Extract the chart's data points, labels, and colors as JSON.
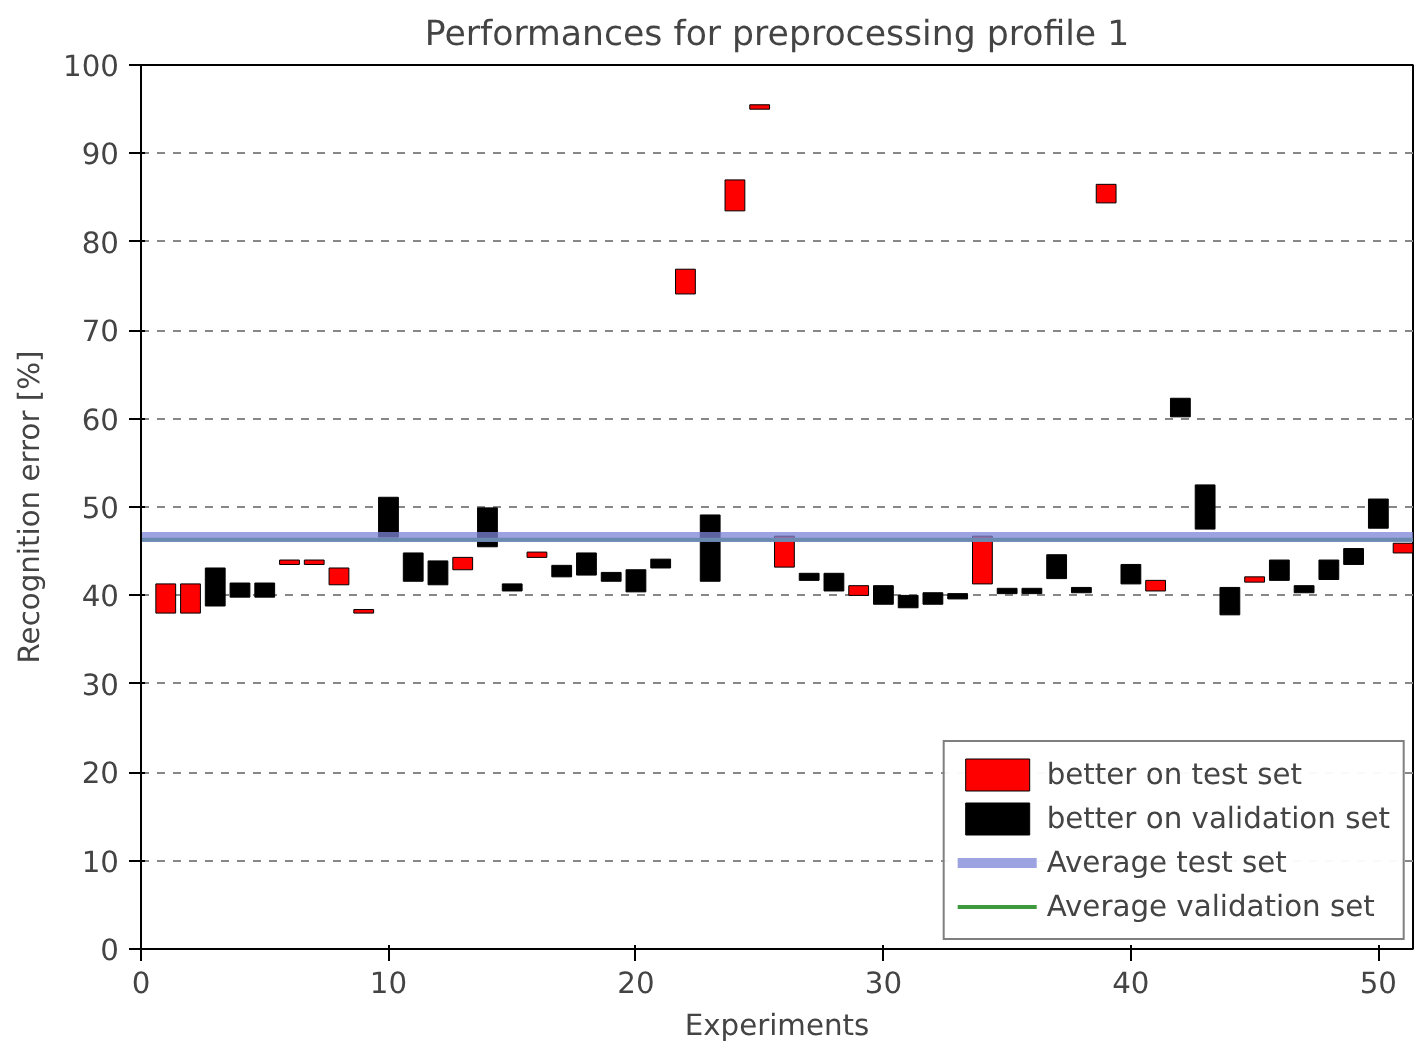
{
  "chart_data": {
    "type": "bar",
    "title": "Performances for preprocessing profile 1",
    "xlabel": "Experiments",
    "ylabel": "Recognition error [%]",
    "series": [
      {
        "name": "better on test set",
        "color": "#ff0000",
        "x": [
          1,
          2,
          6,
          7,
          8,
          9,
          13,
          16,
          22,
          24,
          25,
          26,
          29,
          34,
          39,
          41,
          45,
          51
        ],
        "base": [
          38.0,
          38.0,
          43.5,
          43.5,
          41.2,
          38.0,
          42.9,
          44.3,
          74.1,
          83.5,
          95.0,
          43.2,
          40.0,
          41.3,
          84.4,
          40.5,
          41.5,
          44.8
        ],
        "values": [
          3.3,
          3.3,
          0.5,
          0.5,
          1.9,
          0.4,
          1.4,
          0.6,
          2.8,
          3.5,
          0.5,
          3.5,
          1.1,
          5.4,
          2.1,
          1.2,
          0.6,
          1.1
        ]
      },
      {
        "name": "better on validation set",
        "color": "#000000",
        "x": [
          3,
          4,
          5,
          10,
          11,
          12,
          14,
          15,
          17,
          18,
          19,
          20,
          21,
          23,
          27,
          28,
          30,
          31,
          32,
          33,
          35,
          36,
          37,
          38,
          40,
          42,
          43,
          44,
          46,
          47,
          48,
          49,
          50
        ],
        "base": [
          38.8,
          39.8,
          39.8,
          46.6,
          41.6,
          41.2,
          45.5,
          40.5,
          42.1,
          42.3,
          41.6,
          40.4,
          43.1,
          41.6,
          41.7,
          40.5,
          39.0,
          38.6,
          39.0,
          39.6,
          40.2,
          40.2,
          41.9,
          40.3,
          41.3,
          60.2,
          47.5,
          37.8,
          41.7,
          40.3,
          41.8,
          43.5,
          47.6
        ],
        "values": [
          4.3,
          1.6,
          1.6,
          4.5,
          3.2,
          2.7,
          4.4,
          0.8,
          1.3,
          2.5,
          1.0,
          2.5,
          1.0,
          7.5,
          0.8,
          2.0,
          2.1,
          1.4,
          1.3,
          0.6,
          0.6,
          0.6,
          2.7,
          0.6,
          2.2,
          2.1,
          5.0,
          3.1,
          2.3,
          0.8,
          2.2,
          1.8,
          3.3
        ]
      }
    ],
    "ref_lines": [
      {
        "axis": "y",
        "value": 46.6,
        "label": "Average test set",
        "color": "#7b84d6"
      },
      {
        "axis": "y",
        "value": 46.3,
        "label": "Average validation set",
        "color": "#3c9a3c"
      }
    ],
    "xlim": [
      0,
      51.4
    ],
    "ylim": [
      0,
      100
    ],
    "xticks": [
      0,
      10,
      20,
      30,
      40,
      50
    ],
    "yticks": [
      0,
      10,
      20,
      30,
      40,
      50,
      60,
      70,
      80,
      90,
      100
    ],
    "grid": "y",
    "legend": "bottom right"
  }
}
